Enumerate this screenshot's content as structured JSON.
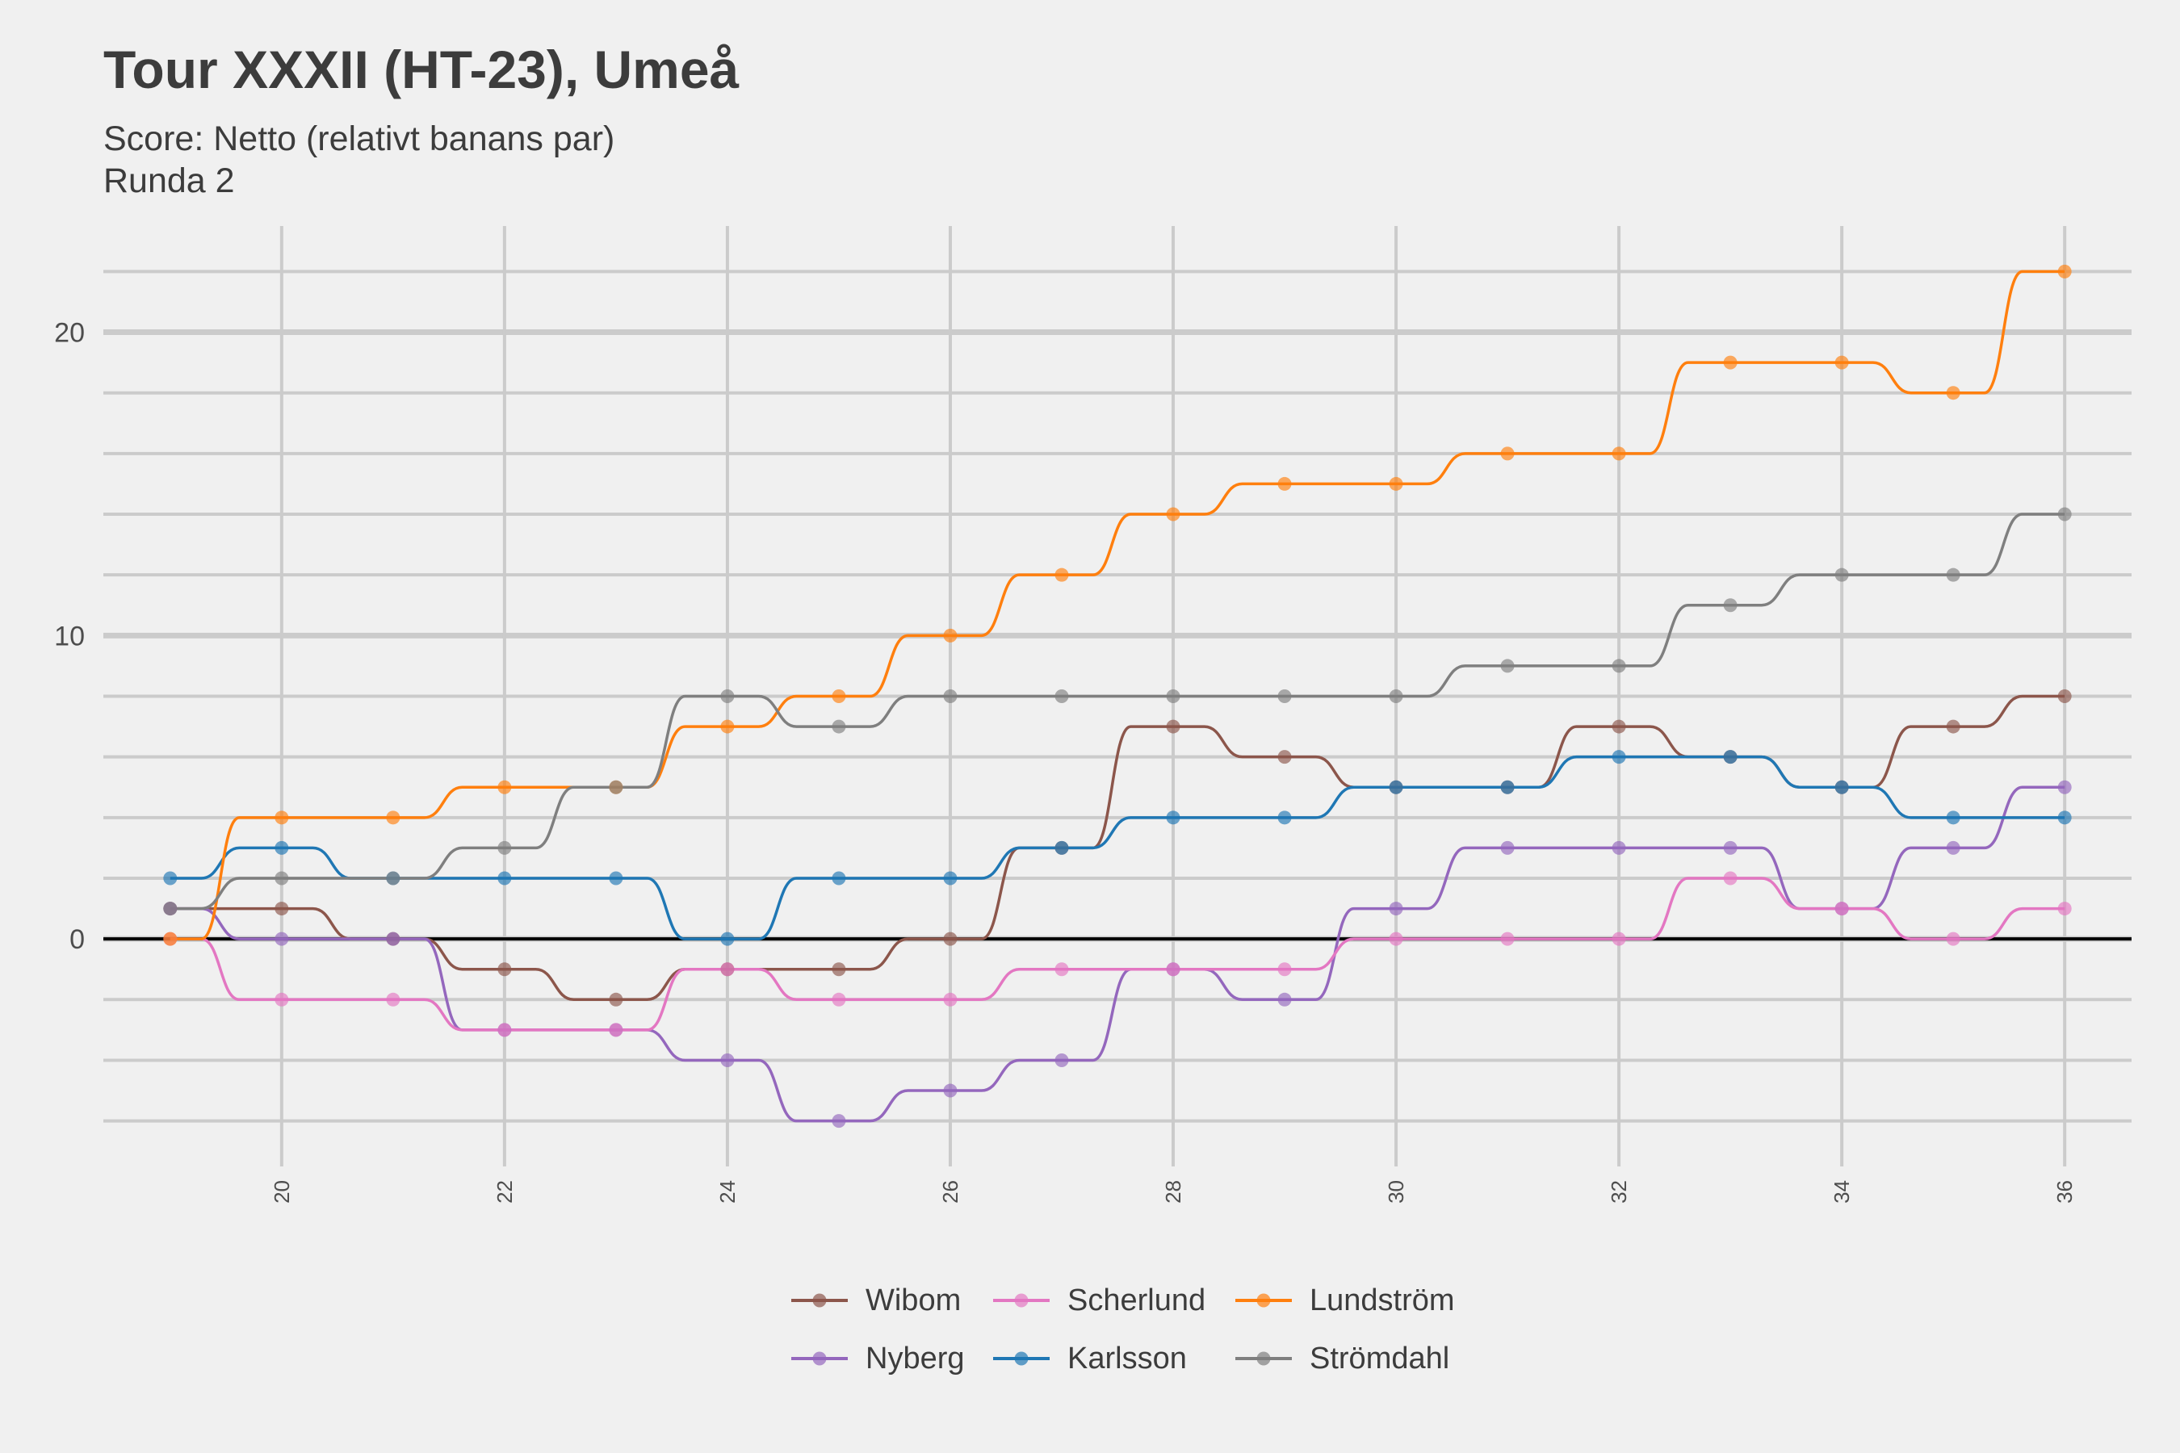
{
  "title": "Tour XXXII (HT-23), Umeå",
  "subtitle": "Score: Netto (relativt banans par)",
  "subtitle2": "Runda 2",
  "chart_data": {
    "type": "line",
    "x": [
      19,
      20,
      21,
      22,
      23,
      24,
      25,
      26,
      27,
      28,
      29,
      30,
      31,
      32,
      33,
      34,
      35,
      36
    ],
    "xticks": [
      20,
      22,
      24,
      26,
      28,
      30,
      32,
      34,
      36
    ],
    "yticks": [
      0,
      10,
      20
    ],
    "xlim": [
      18.4,
      36.6
    ],
    "ylim": [
      -7.5,
      23.5
    ],
    "grid": true,
    "legend_position": "bottom",
    "series": [
      {
        "name": "Wibom",
        "color": "#8c564b",
        "values": [
          1,
          1,
          0,
          -1,
          -2,
          -1,
          -1,
          0,
          3,
          7,
          6,
          5,
          5,
          7,
          6,
          5,
          7,
          8
        ]
      },
      {
        "name": "Nyberg",
        "color": "#9467bd",
        "values": [
          1,
          0,
          0,
          -3,
          -3,
          -4,
          -6,
          -5,
          -4,
          -1,
          -2,
          1,
          3,
          3,
          3,
          1,
          3,
          5
        ]
      },
      {
        "name": "Scherlund",
        "color": "#e377c2",
        "values": [
          0,
          -2,
          -2,
          -3,
          -3,
          -1,
          -2,
          -2,
          -1,
          -1,
          -1,
          0,
          0,
          0,
          2,
          1,
          0,
          1
        ]
      },
      {
        "name": "Karlsson",
        "color": "#1f77b4",
        "values": [
          2,
          3,
          2,
          2,
          2,
          0,
          2,
          2,
          3,
          4,
          4,
          5,
          5,
          6,
          6,
          5,
          4,
          4
        ]
      },
      {
        "name": "Lundström",
        "color": "#ff7f0e",
        "values": [
          0,
          4,
          4,
          5,
          5,
          7,
          8,
          10,
          12,
          14,
          15,
          15,
          16,
          16,
          19,
          19,
          18,
          22
        ]
      },
      {
        "name": "Strömdahl",
        "color": "#7f7f7f",
        "values": [
          1,
          2,
          2,
          3,
          5,
          8,
          7,
          8,
          8,
          8,
          8,
          8,
          9,
          9,
          11,
          12,
          12,
          14
        ]
      }
    ]
  }
}
